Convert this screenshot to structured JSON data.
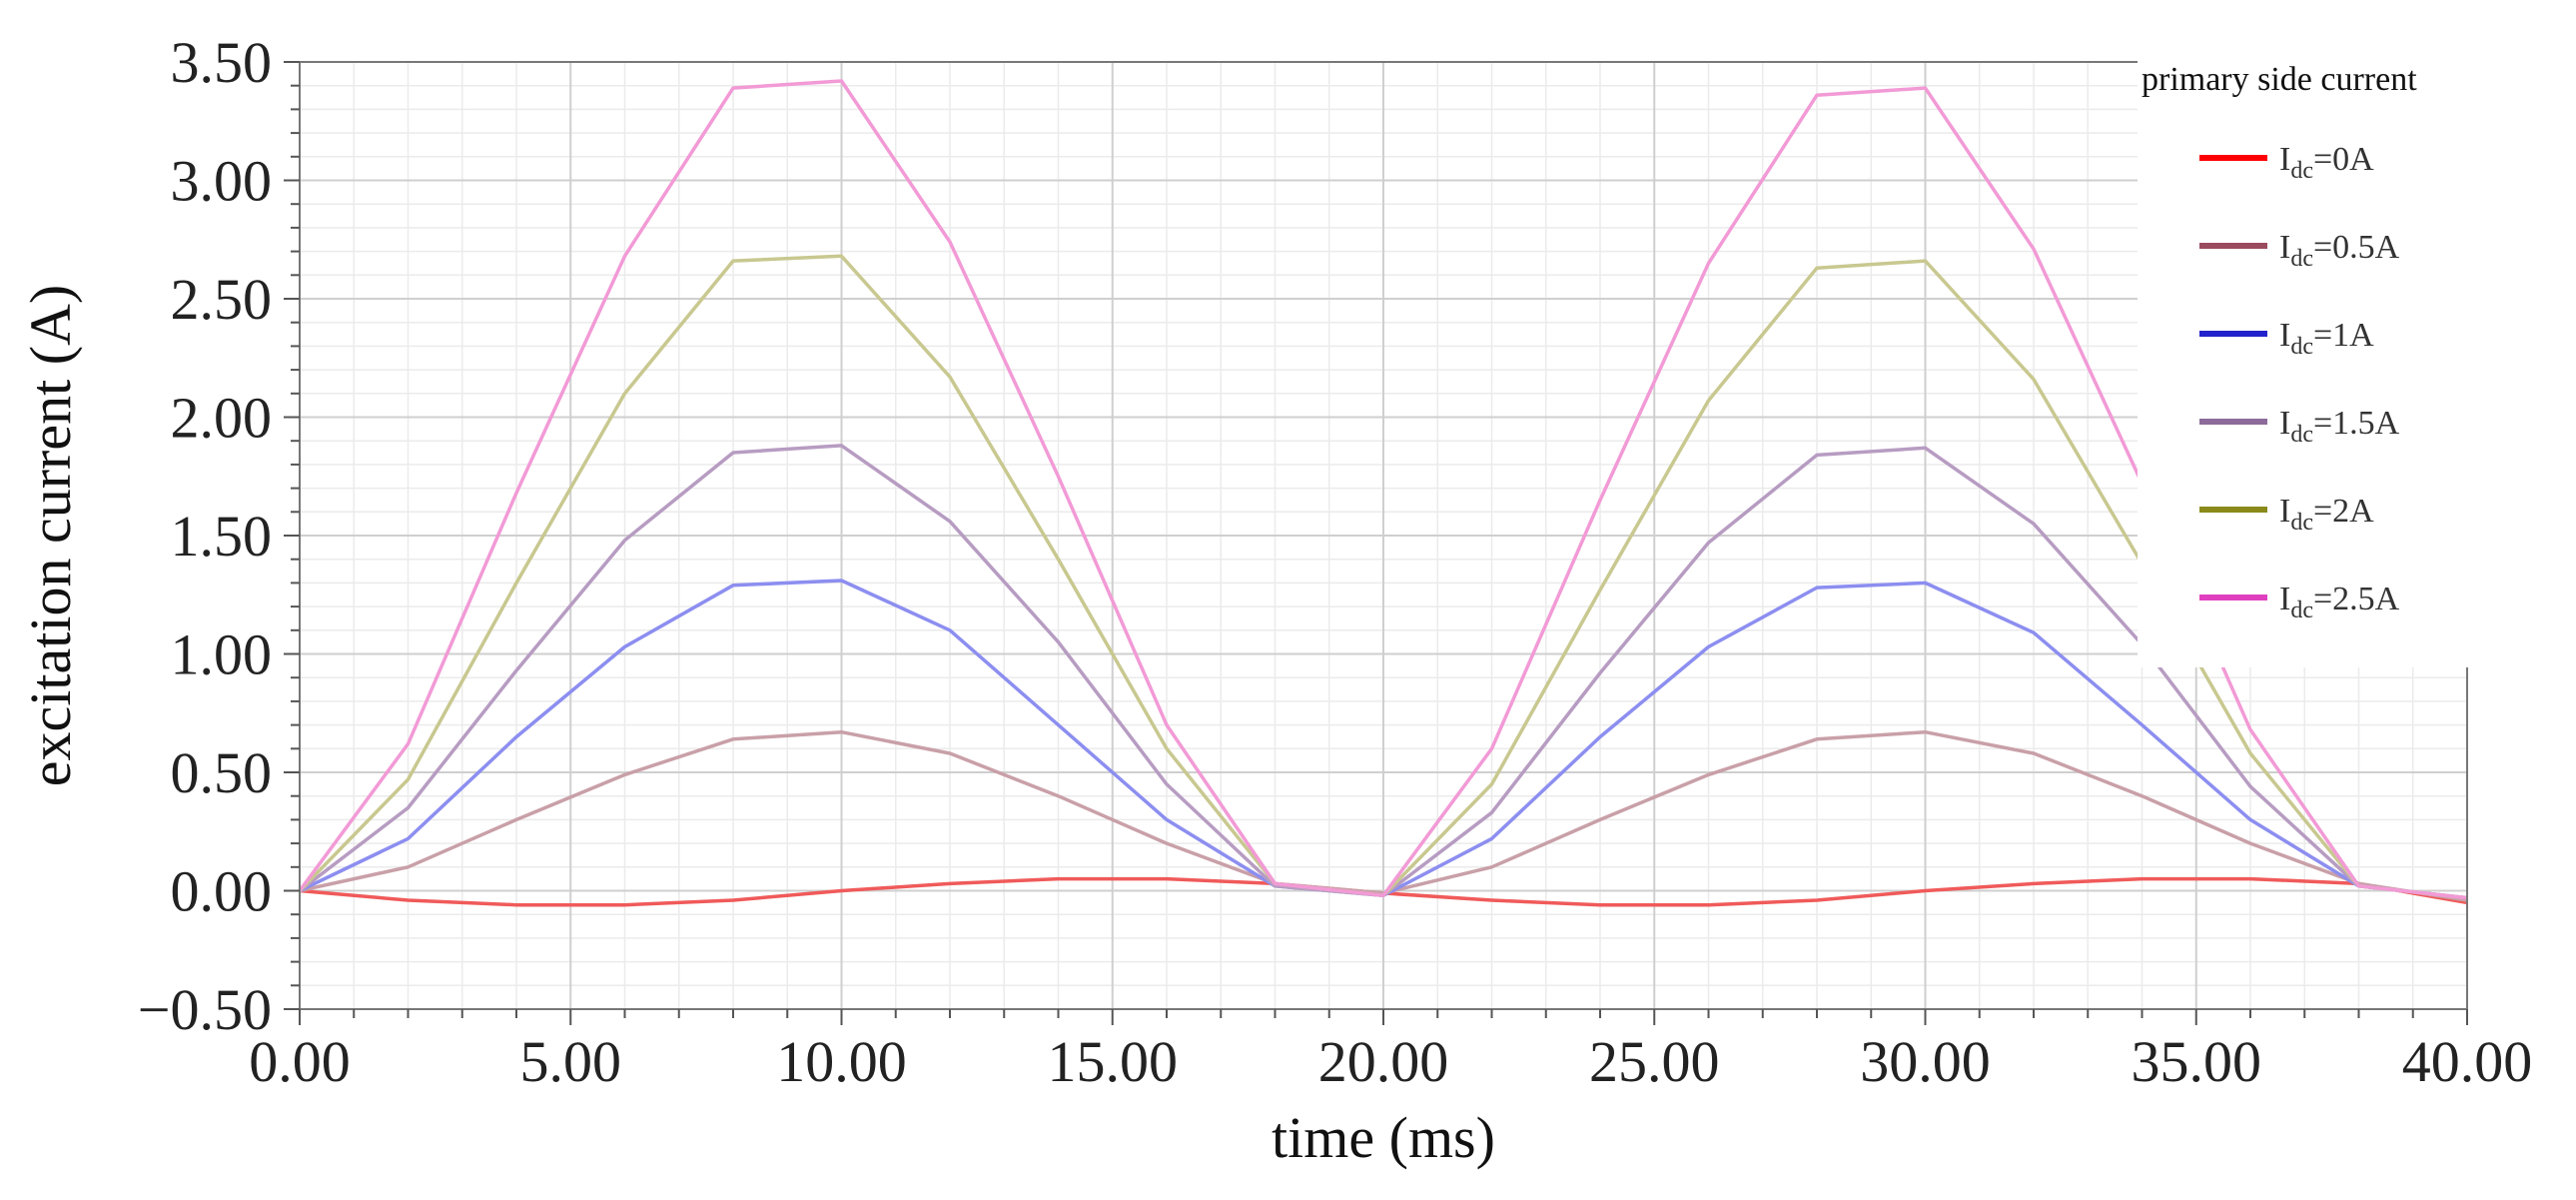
{
  "chart_data": {
    "type": "line",
    "title": "",
    "xlabel": "time (ms)",
    "ylabel": "excitation current (A)",
    "xlim": [
      0,
      40
    ],
    "ylim": [
      -0.5,
      3.5
    ],
    "xticks": [
      0,
      5,
      10,
      15,
      20,
      25,
      30,
      35,
      40
    ],
    "yticks": [
      -0.5,
      0,
      0.5,
      1,
      1.5,
      2,
      2.5,
      3,
      3.5
    ],
    "xtick_labels": [
      "0.00",
      "5.00",
      "10.00",
      "15.00",
      "20.00",
      "25.00",
      "30.00",
      "35.00",
      "40.00"
    ],
    "ytick_labels": [
      "−0.50",
      "0.00",
      "0.50",
      "1.00",
      "1.50",
      "2.00",
      "2.50",
      "3.00",
      "3.50"
    ],
    "grid": true,
    "legend_title": "primary side current",
    "legend_position": "top-right",
    "x": [
      0,
      2,
      4,
      6,
      8,
      10,
      12,
      14,
      16,
      18,
      20,
      22,
      24,
      26,
      28,
      30,
      32,
      34,
      36,
      38,
      40
    ],
    "series": [
      {
        "name": "Idc=0A",
        "prefix": "I",
        "sub": "dc",
        "suffix": "=0A",
        "color": "#ff0000",
        "line_color": "#f05a5a",
        "values": [
          0,
          -0.04,
          -0.06,
          -0.06,
          -0.04,
          0,
          0.03,
          0.05,
          0.05,
          0.03,
          -0.01,
          -0.04,
          -0.06,
          -0.06,
          -0.04,
          0,
          0.03,
          0.05,
          0.05,
          0.03,
          -0.05
        ]
      },
      {
        "name": "Idc=0.5A",
        "prefix": "I",
        "sub": "dc",
        "suffix": "=0.5A",
        "color": "#9b4b5e",
        "line_color": "#c9a0a8",
        "values": [
          0,
          0.1,
          0.3,
          0.49,
          0.64,
          0.67,
          0.58,
          0.4,
          0.2,
          0.03,
          -0.01,
          0.1,
          0.3,
          0.49,
          0.64,
          0.67,
          0.58,
          0.4,
          0.2,
          0.03,
          -0.04
        ]
      },
      {
        "name": "Idc=1A",
        "prefix": "I",
        "sub": "dc",
        "suffix": "=1A",
        "color": "#2222cc",
        "line_color": "#8c8ef0",
        "values": [
          0,
          0.22,
          0.65,
          1.03,
          1.29,
          1.31,
          1.1,
          0.7,
          0.3,
          0.02,
          -0.02,
          0.22,
          0.65,
          1.03,
          1.28,
          1.3,
          1.09,
          0.7,
          0.3,
          0.02,
          -0.03
        ]
      },
      {
        "name": "Idc=1.5A",
        "prefix": "I",
        "sub": "dc",
        "suffix": "=1.5A",
        "color": "#8c6a9a",
        "line_color": "#b79cc2",
        "values": [
          0,
          0.35,
          0.93,
          1.48,
          1.85,
          1.88,
          1.56,
          1.05,
          0.45,
          0.02,
          -0.02,
          0.33,
          0.92,
          1.47,
          1.84,
          1.87,
          1.55,
          1.04,
          0.44,
          0.02,
          -0.03
        ]
      },
      {
        "name": "Idc=2A",
        "prefix": "I",
        "sub": "dc",
        "suffix": "=2A",
        "color": "#8a8a1a",
        "line_color": "#c8c890",
        "values": [
          0,
          0.47,
          1.3,
          2.1,
          2.66,
          2.68,
          2.17,
          1.4,
          0.6,
          0.03,
          -0.02,
          0.45,
          1.27,
          2.07,
          2.63,
          2.66,
          2.16,
          1.38,
          0.58,
          0.02,
          -0.03
        ]
      },
      {
        "name": "Idc=2.5A",
        "prefix": "I",
        "sub": "dc",
        "suffix": "=2.5A",
        "color": "#e040c0",
        "line_color": "#f29ad6",
        "values": [
          0,
          0.62,
          1.68,
          2.68,
          3.39,
          3.42,
          2.74,
          1.75,
          0.7,
          0.03,
          -0.02,
          0.6,
          1.65,
          2.65,
          3.36,
          3.39,
          2.71,
          1.72,
          0.68,
          0.02,
          -0.03
        ]
      }
    ]
  }
}
